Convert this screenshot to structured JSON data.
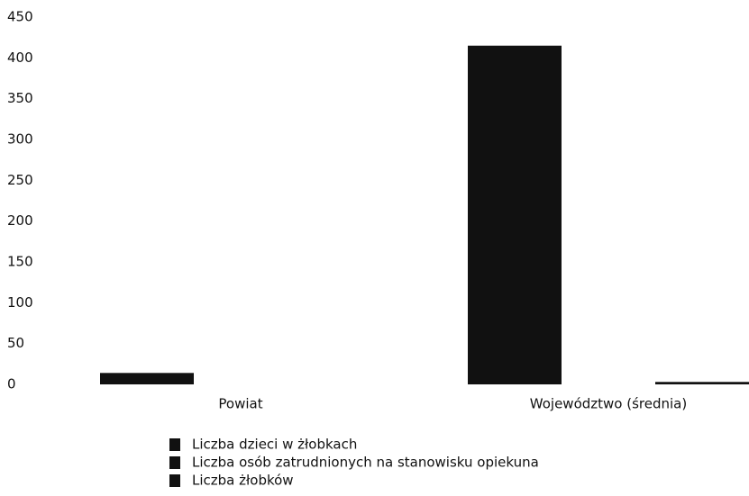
{
  "chart_data": {
    "type": "bar",
    "categories": [
      "Powiat",
      "Województwo (średnia)"
    ],
    "series": [
      {
        "name": "Liczba dzieci w żłobkach",
        "color": "#111111",
        "values": [
          14,
          415
        ]
      },
      {
        "name": "Liczba osób zatrudnionych na stanowisku opiekuna",
        "color": "#111111",
        "values": [
          0,
          0
        ]
      },
      {
        "name": "Liczba żłobków",
        "color": "#111111",
        "values": [
          0,
          3
        ]
      }
    ],
    "ylim": [
      0,
      450
    ],
    "yticks": [
      0,
      50,
      100,
      150,
      200,
      250,
      300,
      350,
      400,
      450
    ],
    "grid": false
  }
}
